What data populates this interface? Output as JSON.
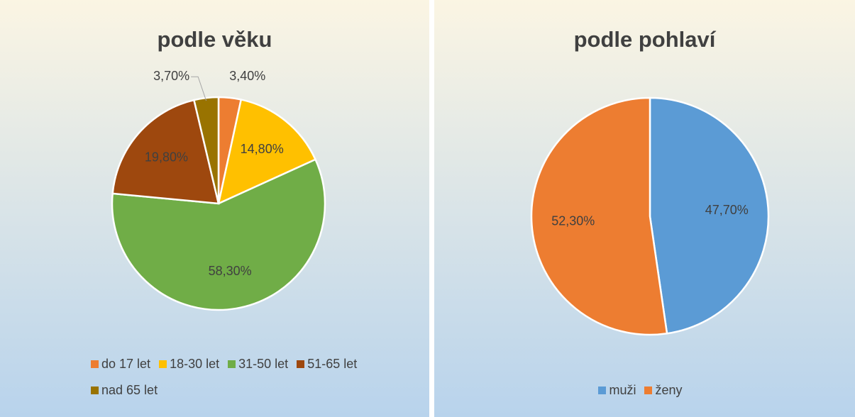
{
  "chart_data": [
    {
      "type": "pie",
      "title": "podle věku",
      "categories": [
        "do 17 let",
        "18-30 let",
        "31-50 let",
        "51-65 let",
        "nad 65 let"
      ],
      "values": [
        3.4,
        14.8,
        58.3,
        19.8,
        3.7
      ],
      "value_labels": [
        "3,40%",
        "14,80%",
        "58,30%",
        "19,80%",
        "3,70%"
      ],
      "colors": [
        "#ed7d31",
        "#ffc000",
        "#70ad47",
        "#9e480e",
        "#997300"
      ],
      "legend": "bottom"
    },
    {
      "type": "pie",
      "title": "podle pohlaví",
      "categories": [
        "muži",
        "ženy"
      ],
      "values": [
        47.7,
        52.3
      ],
      "value_labels": [
        "47,70%",
        "52,30%"
      ],
      "colors": [
        "#5b9bd5",
        "#ed7d31"
      ],
      "legend": "bottom"
    }
  ]
}
